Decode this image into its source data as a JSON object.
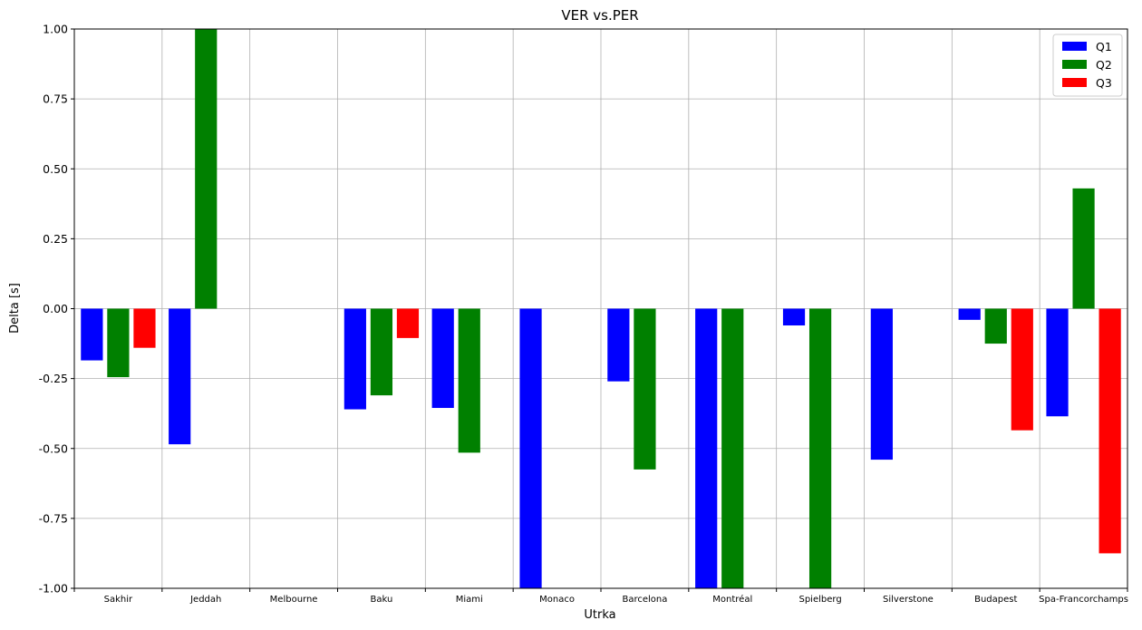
{
  "chart_data": {
    "type": "bar",
    "title": "VER vs.PER",
    "xlabel": "Utrka",
    "ylabel": "Delta [s]",
    "ylim": [
      -1.0,
      1.0
    ],
    "yticks": [
      "-1.00",
      "-0.75",
      "-0.50",
      "-0.25",
      "0.00",
      "0.25",
      "0.50",
      "0.75",
      "1.00"
    ],
    "ytick_values": [
      -1.0,
      -0.75,
      -0.5,
      -0.25,
      0.0,
      0.25,
      0.5,
      0.75,
      1.0
    ],
    "grid": true,
    "legend_position": "top-right",
    "categories": [
      "Sakhir",
      "Jeddah",
      "Melbourne",
      "Baku",
      "Miami",
      "Monaco",
      "Barcelona",
      "Montréal",
      "Spielberg",
      "Silverstone",
      "Budapest",
      "Spa-Francorchamps"
    ],
    "series": [
      {
        "name": "Q1",
        "color": "#0000ff",
        "values": [
          -0.185,
          -0.485,
          null,
          -0.36,
          -0.355,
          -1.0,
          -0.26,
          -1.0,
          -0.06,
          -0.54,
          -0.04,
          -0.385
        ]
      },
      {
        "name": "Q2",
        "color": "#008000",
        "values": [
          -0.245,
          1.0,
          null,
          -0.31,
          -0.515,
          null,
          -0.575,
          -1.0,
          -1.0,
          null,
          -0.125,
          0.43
        ]
      },
      {
        "name": "Q3",
        "color": "#ff0000",
        "values": [
          -0.14,
          null,
          null,
          -0.105,
          null,
          null,
          null,
          null,
          null,
          null,
          -0.435,
          -0.875
        ]
      }
    ]
  }
}
